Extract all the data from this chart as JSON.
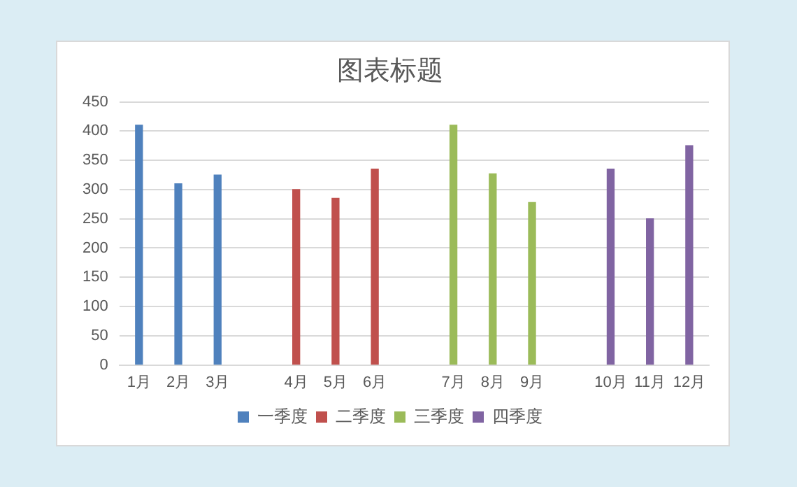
{
  "chart_data": {
    "type": "bar",
    "title": "图表标题",
    "categories": [
      "1月",
      "2月",
      "3月",
      null,
      "4月",
      "5月",
      "6月",
      null,
      "7月",
      "8月",
      "9月",
      null,
      "10月",
      "11月",
      "12月"
    ],
    "series": [
      {
        "name": "一季度",
        "color": "#4f81bd",
        "values": [
          410,
          310,
          325,
          null,
          null,
          null,
          null,
          null,
          null,
          null,
          null,
          null,
          null,
          null,
          null
        ]
      },
      {
        "name": "二季度",
        "color": "#c0504d",
        "values": [
          null,
          null,
          null,
          null,
          300,
          285,
          335,
          null,
          null,
          null,
          null,
          null,
          null,
          null,
          null
        ]
      },
      {
        "name": "三季度",
        "color": "#9bbb59",
        "values": [
          null,
          null,
          null,
          null,
          null,
          null,
          null,
          null,
          410,
          327,
          278,
          null,
          null,
          null,
          null
        ]
      },
      {
        "name": "四季度",
        "color": "#8064a2",
        "values": [
          null,
          null,
          null,
          null,
          null,
          null,
          null,
          null,
          null,
          null,
          null,
          null,
          335,
          250,
          375
        ]
      }
    ],
    "ylim": [
      0,
      450
    ],
    "yticks": [
      0,
      50,
      100,
      150,
      200,
      250,
      300,
      350,
      400,
      450
    ],
    "grid": "y",
    "legend": "bottom"
  }
}
